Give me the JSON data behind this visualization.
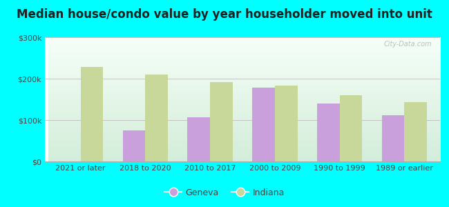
{
  "title": "Median house/condo value by year householder moved into unit",
  "categories": [
    "2021 or later",
    "2018 to 2020",
    "2010 to 2017",
    "2000 to 2009",
    "1990 to 1999",
    "1989 or earlier"
  ],
  "geneva_values": [
    0,
    75000,
    107000,
    178000,
    140000,
    112000
  ],
  "indiana_values": [
    228000,
    210000,
    192000,
    183000,
    160000,
    143000
  ],
  "geneva_color": "#c9a0dc",
  "indiana_color": "#c8d89a",
  "background_color": "#00ffff",
  "ylim": [
    0,
    300000
  ],
  "yticks": [
    0,
    100000,
    200000,
    300000
  ],
  "ytick_labels": [
    "$0",
    "$100k",
    "$200k",
    "$300k"
  ],
  "bar_width": 0.35,
  "title_fontsize": 12,
  "tick_fontsize": 8,
  "legend_labels": [
    "Geneva",
    "Indiana"
  ],
  "watermark": "City-Data.com"
}
